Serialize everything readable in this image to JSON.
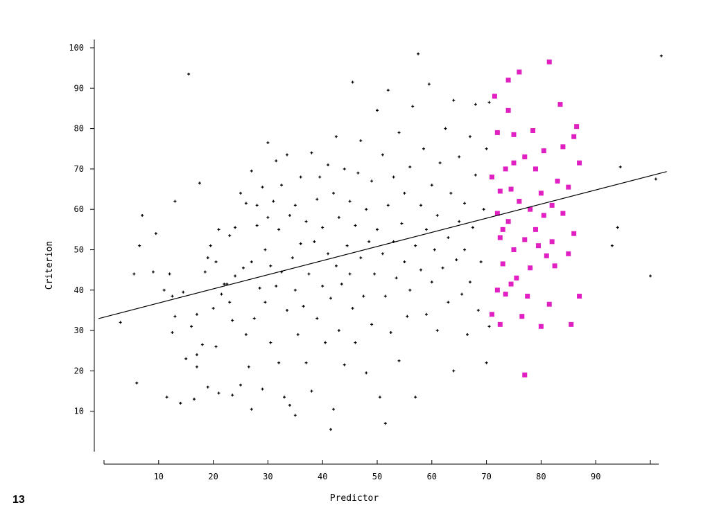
{
  "slide_number": "13",
  "chart_data": {
    "type": "scatter",
    "title": "",
    "xlabel": "Predictor",
    "ylabel": "Criterion",
    "xlim": [
      0,
      102
    ],
    "ylim": [
      0,
      101
    ],
    "xticks": [
      "10",
      "20",
      "30",
      "40",
      "50",
      "60",
      "70",
      "80",
      "90"
    ],
    "yticks": [
      "10",
      "20",
      "30",
      "40",
      "50",
      "60",
      "70",
      "80",
      "90",
      "100"
    ],
    "grid": false,
    "legend": "none",
    "colors": {
      "points": "#000000",
      "highlight": "#e020c0",
      "line": "#000000"
    },
    "regression_line": {
      "intercept": 33.3,
      "slope": 0.35
    },
    "highlight_threshold_x": 71,
    "series": [
      {
        "values": [
          [
            3,
            32
          ],
          [
            5.5,
            44
          ],
          [
            6,
            17
          ],
          [
            6.5,
            51
          ],
          [
            7,
            58.5
          ],
          [
            9,
            44.5
          ],
          [
            9.5,
            54
          ],
          [
            11,
            40
          ],
          [
            11.5,
            13.5
          ],
          [
            12,
            44
          ],
          [
            12.5,
            29.5
          ],
          [
            12.5,
            38.5
          ],
          [
            13,
            33.5
          ],
          [
            13,
            62
          ],
          [
            14,
            12
          ],
          [
            14.5,
            39.5
          ],
          [
            15,
            23
          ],
          [
            15.5,
            93.5
          ],
          [
            16,
            31
          ],
          [
            16.5,
            13
          ],
          [
            17,
            34
          ],
          [
            17,
            24
          ],
          [
            17,
            21
          ],
          [
            17.5,
            66.5
          ],
          [
            18,
            26.5
          ],
          [
            18.5,
            44.5
          ],
          [
            19,
            16
          ],
          [
            19,
            48
          ],
          [
            19.5,
            51
          ],
          [
            20,
            35.5
          ],
          [
            20.5,
            26
          ],
          [
            20.5,
            47
          ],
          [
            21,
            55
          ],
          [
            21,
            14.5
          ],
          [
            21.5,
            39
          ],
          [
            22,
            41.5
          ],
          [
            22.5,
            41.5
          ],
          [
            23,
            37
          ],
          [
            23,
            53.5
          ],
          [
            23.5,
            32.5
          ],
          [
            23.5,
            14
          ],
          [
            24,
            43.5
          ],
          [
            24,
            55.5
          ],
          [
            25,
            16.5
          ],
          [
            25,
            64
          ],
          [
            25.5,
            45.5
          ],
          [
            26,
            29
          ],
          [
            26,
            61.5
          ],
          [
            26.5,
            21
          ],
          [
            27,
            10.5
          ],
          [
            27,
            47
          ],
          [
            27,
            69.5
          ],
          [
            27.5,
            33
          ],
          [
            28,
            61
          ],
          [
            28,
            56
          ],
          [
            28.5,
            40.5
          ],
          [
            29,
            15.5
          ],
          [
            29,
            65.5
          ],
          [
            29.5,
            37
          ],
          [
            29.5,
            50
          ],
          [
            30,
            76.5
          ],
          [
            30,
            58
          ],
          [
            30.5,
            46
          ],
          [
            30.5,
            27
          ],
          [
            31,
            62
          ],
          [
            31.5,
            41
          ],
          [
            31.5,
            72
          ],
          [
            32,
            22
          ],
          [
            32,
            55
          ],
          [
            32.5,
            44.5
          ],
          [
            32.5,
            66
          ],
          [
            33,
            13.5
          ],
          [
            33.5,
            35
          ],
          [
            33.5,
            73.5
          ],
          [
            34,
            58.5
          ],
          [
            34,
            11.5
          ],
          [
            34.5,
            48
          ],
          [
            35,
            9
          ],
          [
            35,
            61
          ],
          [
            35,
            40
          ],
          [
            35.5,
            29
          ],
          [
            36,
            68
          ],
          [
            36,
            51.5
          ],
          [
            36.5,
            36
          ],
          [
            37,
            57
          ],
          [
            37,
            22
          ],
          [
            37.5,
            44
          ],
          [
            38,
            74
          ],
          [
            38,
            15
          ],
          [
            38.5,
            52
          ],
          [
            39,
            62.5
          ],
          [
            39,
            33
          ],
          [
            39.5,
            68
          ],
          [
            40,
            41
          ],
          [
            40,
            55.5
          ],
          [
            40.5,
            27
          ],
          [
            41,
            71
          ],
          [
            41,
            49
          ],
          [
            41.5,
            5.5
          ],
          [
            41.5,
            38
          ],
          [
            42,
            64
          ],
          [
            42,
            10.5
          ],
          [
            42.5,
            46
          ],
          [
            42.5,
            78
          ],
          [
            43,
            30
          ],
          [
            43,
            58
          ],
          [
            43.5,
            41.5
          ],
          [
            44,
            70
          ],
          [
            44,
            21.5
          ],
          [
            44.5,
            51
          ],
          [
            45,
            62
          ],
          [
            45,
            44
          ],
          [
            45.5,
            91.5
          ],
          [
            45.5,
            35.5
          ],
          [
            46,
            56
          ],
          [
            46,
            27
          ],
          [
            46.5,
            69
          ],
          [
            47,
            48
          ],
          [
            47,
            77
          ],
          [
            47.5,
            38.5
          ],
          [
            48,
            60
          ],
          [
            48,
            19.5
          ],
          [
            48.5,
            52
          ],
          [
            49,
            67
          ],
          [
            49,
            31.5
          ],
          [
            49.5,
            44
          ],
          [
            50,
            55
          ],
          [
            50,
            84.5
          ],
          [
            50.5,
            13.5
          ],
          [
            51,
            49
          ],
          [
            51,
            73.5
          ],
          [
            51.5,
            7
          ],
          [
            51.5,
            38.5
          ],
          [
            52,
            61
          ],
          [
            52,
            89.5
          ],
          [
            52.5,
            29.5
          ],
          [
            53,
            52
          ],
          [
            53,
            68
          ],
          [
            53.5,
            43
          ],
          [
            54,
            79
          ],
          [
            54,
            22.5
          ],
          [
            54.5,
            56.5
          ],
          [
            55,
            47
          ],
          [
            55,
            64
          ],
          [
            55.5,
            33.5
          ],
          [
            56,
            70.5
          ],
          [
            56,
            40
          ],
          [
            56.5,
            85.5
          ],
          [
            57,
            51
          ],
          [
            57,
            13.5
          ],
          [
            57.5,
            98.5
          ],
          [
            58,
            61
          ],
          [
            58,
            45
          ],
          [
            58.5,
            75
          ],
          [
            59,
            34
          ],
          [
            59,
            55
          ],
          [
            59.5,
            91
          ],
          [
            60,
            42
          ],
          [
            60,
            66
          ],
          [
            60.5,
            50
          ],
          [
            61,
            30
          ],
          [
            61,
            58.5
          ],
          [
            61.5,
            71.5
          ],
          [
            62,
            45.5
          ],
          [
            62.5,
            80
          ],
          [
            63,
            37
          ],
          [
            63,
            53
          ],
          [
            63.5,
            64
          ],
          [
            64,
            20
          ],
          [
            64,
            87
          ],
          [
            64.5,
            47.5
          ],
          [
            65,
            57
          ],
          [
            65,
            73
          ],
          [
            65.5,
            39
          ],
          [
            66,
            61.5
          ],
          [
            66,
            50
          ],
          [
            66.5,
            29
          ],
          [
            67,
            78
          ],
          [
            67,
            42
          ],
          [
            67.5,
            55.5
          ],
          [
            68,
            68.5
          ],
          [
            68,
            86
          ],
          [
            68.5,
            35
          ],
          [
            69,
            47
          ],
          [
            69.5,
            60
          ],
          [
            70,
            22
          ],
          [
            70,
            75
          ],
          [
            70.5,
            31
          ],
          [
            70.5,
            86.5
          ],
          [
            93,
            51
          ],
          [
            94,
            55.5
          ],
          [
            94.5,
            70.5
          ],
          [
            100,
            43.5
          ],
          [
            101,
            67.5
          ],
          [
            102,
            98
          ]
        ]
      },
      {
        "values": [
          [
            71,
            34
          ],
          [
            71,
            68
          ],
          [
            71.5,
            88
          ],
          [
            72,
            40
          ],
          [
            72,
            59
          ],
          [
            72,
            79
          ],
          [
            72.5,
            31.5
          ],
          [
            72.5,
            53
          ],
          [
            72.5,
            64.5
          ],
          [
            73,
            46.5
          ],
          [
            73,
            55
          ],
          [
            73.5,
            70
          ],
          [
            73.5,
            39
          ],
          [
            74,
            84.5
          ],
          [
            74,
            92
          ],
          [
            74,
            57
          ],
          [
            74.5,
            65
          ],
          [
            74.5,
            41.5
          ],
          [
            75,
            78.5
          ],
          [
            75,
            50
          ],
          [
            75,
            71.5
          ],
          [
            75.5,
            43
          ],
          [
            76,
            94
          ],
          [
            76,
            62
          ],
          [
            76.5,
            33.5
          ],
          [
            77,
            73
          ],
          [
            77,
            52.5
          ],
          [
            77,
            19
          ],
          [
            77.5,
            38.5
          ],
          [
            78,
            60
          ],
          [
            78,
            45.5
          ],
          [
            78.5,
            79.5
          ],
          [
            79,
            55
          ],
          [
            79,
            70
          ],
          [
            79.5,
            51
          ],
          [
            80,
            64
          ],
          [
            80,
            31
          ],
          [
            80.5,
            58.5
          ],
          [
            80.5,
            74.5
          ],
          [
            81,
            48.5
          ],
          [
            81.5,
            36.5
          ],
          [
            81.5,
            96.5
          ],
          [
            82,
            52
          ],
          [
            82,
            61
          ],
          [
            82.5,
            46
          ],
          [
            83,
            67
          ],
          [
            83.5,
            86
          ],
          [
            84,
            75.5
          ],
          [
            84,
            59
          ],
          [
            85,
            49
          ],
          [
            85,
            65.5
          ],
          [
            85.5,
            31.5
          ],
          [
            86,
            78
          ],
          [
            86,
            54
          ],
          [
            86.5,
            80.5
          ],
          [
            87,
            71.5
          ],
          [
            87,
            38.5
          ]
        ]
      }
    ]
  }
}
